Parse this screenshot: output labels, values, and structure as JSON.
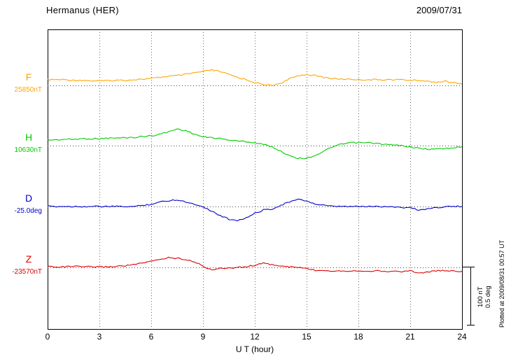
{
  "header": {
    "title": "Hermanus (HER)",
    "date": "2009/07/31"
  },
  "scale_bar": {
    "label_nt": "100 nT",
    "label_deg": "0.5 deg"
  },
  "footer_note": "Plotted at 2009/08/31 00:57 UT",
  "chart_data": {
    "type": "line",
    "title": "Hermanus (HER) magnetogram 2009/07/31",
    "xlabel": "U T (hour)",
    "xlim": [
      0,
      24
    ],
    "x_ticks": [
      0,
      3,
      6,
      9,
      12,
      15,
      18,
      21,
      24
    ],
    "grid": "dotted-vertical-every-3h-and-dotted-baseline-per-series",
    "values_are": "offset_from_base_value",
    "scale_bar": {
      "nT": 100,
      "deg": 0.5
    },
    "x": [
      0,
      0.5,
      1,
      1.5,
      2,
      2.5,
      3,
      3.5,
      4,
      4.5,
      5,
      5.5,
      6,
      6.5,
      7,
      7.5,
      8,
      8.5,
      9,
      9.5,
      10,
      10.5,
      11,
      11.5,
      12,
      12.5,
      13,
      13.5,
      14,
      14.5,
      15,
      15.5,
      16,
      16.5,
      17,
      17.5,
      18,
      18.5,
      19,
      19.5,
      20,
      20.5,
      21,
      21.5,
      22,
      22.5,
      23,
      23.5,
      24
    ],
    "series": [
      {
        "name": "F",
        "letter": "F",
        "base_label": "25850nT",
        "base_value": 25850,
        "unit": "nT",
        "color": "#FFA500",
        "values": [
          10,
          10,
          10,
          9,
          9,
          8,
          8,
          8,
          9,
          9,
          10,
          11,
          12,
          14,
          16,
          17,
          19,
          22,
          24,
          27,
          24,
          19,
          14,
          10,
          5,
          1,
          0,
          4,
          11,
          17,
          19,
          17,
          14,
          12,
          11,
          11,
          10,
          10,
          10,
          10,
          10,
          10,
          9,
          9,
          7,
          6,
          7,
          5,
          2
        ]
      },
      {
        "name": "H",
        "letter": "H",
        "base_label": "10630nT",
        "base_value": 10630,
        "unit": "nT",
        "color": "#00CC00",
        "values": [
          10,
          10,
          11,
          11,
          12,
          12,
          12,
          13,
          13,
          14,
          14,
          16,
          17,
          20,
          24,
          29,
          26,
          20,
          15,
          14,
          12,
          10,
          8,
          7,
          5,
          2,
          -2,
          -10,
          -17,
          -22,
          -22,
          -17,
          -10,
          -2,
          2,
          5,
          5,
          5,
          4,
          2,
          1,
          0,
          -2,
          -5,
          -6,
          -6,
          -5,
          -4,
          -2
        ]
      },
      {
        "name": "D",
        "letter": "D",
        "base_label": "-25.0deg",
        "base_value": -25.0,
        "unit": "deg",
        "color": "#0000CD",
        "values": [
          0,
          0,
          0,
          0,
          0,
          0,
          0,
          0,
          0,
          0,
          0,
          0.01,
          0.02,
          0.04,
          0.05,
          0.06,
          0.04,
          0.02,
          0,
          -0.04,
          -0.08,
          -0.11,
          -0.12,
          -0.1,
          -0.06,
          -0.03,
          -0.02,
          0.01,
          0.04,
          0.06,
          0.05,
          0.02,
          0.01,
          0,
          0,
          0,
          0,
          0,
          0,
          0,
          0,
          -0.01,
          -0.01,
          -0.03,
          -0.02,
          -0.01,
          0,
          0,
          0
        ]
      },
      {
        "name": "Z",
        "letter": "Z",
        "base_label": "-23570nT",
        "base_value": -23570,
        "unit": "nT",
        "color": "#DD0000",
        "values": [
          2,
          1,
          1,
          2,
          1,
          1,
          1,
          1,
          2,
          3,
          5,
          7,
          11,
          14,
          17,
          16,
          14,
          10,
          2,
          -4,
          -2,
          -1,
          0,
          1,
          4,
          7,
          5,
          2,
          1,
          0,
          -2,
          -5,
          -5,
          -6,
          -6,
          -6,
          -6,
          -6,
          -6,
          -7,
          -7,
          -7,
          -6,
          -10,
          -8,
          -6,
          -6,
          -6,
          -7
        ]
      }
    ]
  }
}
